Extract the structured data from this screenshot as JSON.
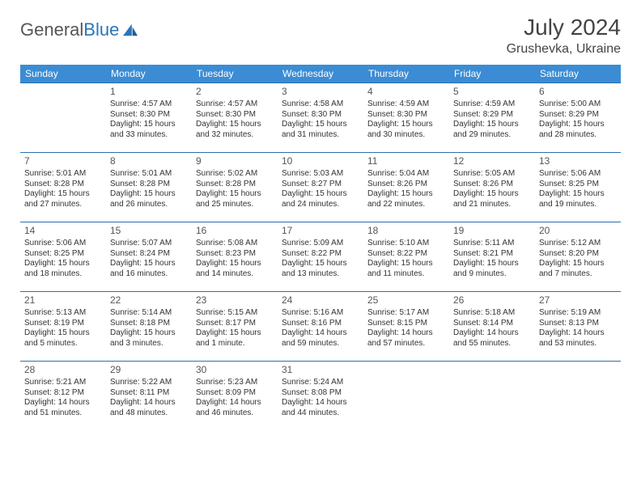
{
  "brand": {
    "part1": "General",
    "part2": "Blue"
  },
  "title": "July 2024",
  "location": "Grushevka, Ukraine",
  "colors": {
    "header_bg": "#3b8cd4",
    "header_text": "#ffffff",
    "row_border": "#2a6fb0",
    "brand_gray": "#555555",
    "brand_blue": "#2a75bb"
  },
  "weekdays": [
    "Sunday",
    "Monday",
    "Tuesday",
    "Wednesday",
    "Thursday",
    "Friday",
    "Saturday"
  ],
  "weeks": [
    [
      null,
      {
        "n": "1",
        "sr": "Sunrise: 4:57 AM",
        "ss": "Sunset: 8:30 PM",
        "d1": "Daylight: 15 hours",
        "d2": "and 33 minutes."
      },
      {
        "n": "2",
        "sr": "Sunrise: 4:57 AM",
        "ss": "Sunset: 8:30 PM",
        "d1": "Daylight: 15 hours",
        "d2": "and 32 minutes."
      },
      {
        "n": "3",
        "sr": "Sunrise: 4:58 AM",
        "ss": "Sunset: 8:30 PM",
        "d1": "Daylight: 15 hours",
        "d2": "and 31 minutes."
      },
      {
        "n": "4",
        "sr": "Sunrise: 4:59 AM",
        "ss": "Sunset: 8:30 PM",
        "d1": "Daylight: 15 hours",
        "d2": "and 30 minutes."
      },
      {
        "n": "5",
        "sr": "Sunrise: 4:59 AM",
        "ss": "Sunset: 8:29 PM",
        "d1": "Daylight: 15 hours",
        "d2": "and 29 minutes."
      },
      {
        "n": "6",
        "sr": "Sunrise: 5:00 AM",
        "ss": "Sunset: 8:29 PM",
        "d1": "Daylight: 15 hours",
        "d2": "and 28 minutes."
      }
    ],
    [
      {
        "n": "7",
        "sr": "Sunrise: 5:01 AM",
        "ss": "Sunset: 8:28 PM",
        "d1": "Daylight: 15 hours",
        "d2": "and 27 minutes."
      },
      {
        "n": "8",
        "sr": "Sunrise: 5:01 AM",
        "ss": "Sunset: 8:28 PM",
        "d1": "Daylight: 15 hours",
        "d2": "and 26 minutes."
      },
      {
        "n": "9",
        "sr": "Sunrise: 5:02 AM",
        "ss": "Sunset: 8:28 PM",
        "d1": "Daylight: 15 hours",
        "d2": "and 25 minutes."
      },
      {
        "n": "10",
        "sr": "Sunrise: 5:03 AM",
        "ss": "Sunset: 8:27 PM",
        "d1": "Daylight: 15 hours",
        "d2": "and 24 minutes."
      },
      {
        "n": "11",
        "sr": "Sunrise: 5:04 AM",
        "ss": "Sunset: 8:26 PM",
        "d1": "Daylight: 15 hours",
        "d2": "and 22 minutes."
      },
      {
        "n": "12",
        "sr": "Sunrise: 5:05 AM",
        "ss": "Sunset: 8:26 PM",
        "d1": "Daylight: 15 hours",
        "d2": "and 21 minutes."
      },
      {
        "n": "13",
        "sr": "Sunrise: 5:06 AM",
        "ss": "Sunset: 8:25 PM",
        "d1": "Daylight: 15 hours",
        "d2": "and 19 minutes."
      }
    ],
    [
      {
        "n": "14",
        "sr": "Sunrise: 5:06 AM",
        "ss": "Sunset: 8:25 PM",
        "d1": "Daylight: 15 hours",
        "d2": "and 18 minutes."
      },
      {
        "n": "15",
        "sr": "Sunrise: 5:07 AM",
        "ss": "Sunset: 8:24 PM",
        "d1": "Daylight: 15 hours",
        "d2": "and 16 minutes."
      },
      {
        "n": "16",
        "sr": "Sunrise: 5:08 AM",
        "ss": "Sunset: 8:23 PM",
        "d1": "Daylight: 15 hours",
        "d2": "and 14 minutes."
      },
      {
        "n": "17",
        "sr": "Sunrise: 5:09 AM",
        "ss": "Sunset: 8:22 PM",
        "d1": "Daylight: 15 hours",
        "d2": "and 13 minutes."
      },
      {
        "n": "18",
        "sr": "Sunrise: 5:10 AM",
        "ss": "Sunset: 8:22 PM",
        "d1": "Daylight: 15 hours",
        "d2": "and 11 minutes."
      },
      {
        "n": "19",
        "sr": "Sunrise: 5:11 AM",
        "ss": "Sunset: 8:21 PM",
        "d1": "Daylight: 15 hours",
        "d2": "and 9 minutes."
      },
      {
        "n": "20",
        "sr": "Sunrise: 5:12 AM",
        "ss": "Sunset: 8:20 PM",
        "d1": "Daylight: 15 hours",
        "d2": "and 7 minutes."
      }
    ],
    [
      {
        "n": "21",
        "sr": "Sunrise: 5:13 AM",
        "ss": "Sunset: 8:19 PM",
        "d1": "Daylight: 15 hours",
        "d2": "and 5 minutes."
      },
      {
        "n": "22",
        "sr": "Sunrise: 5:14 AM",
        "ss": "Sunset: 8:18 PM",
        "d1": "Daylight: 15 hours",
        "d2": "and 3 minutes."
      },
      {
        "n": "23",
        "sr": "Sunrise: 5:15 AM",
        "ss": "Sunset: 8:17 PM",
        "d1": "Daylight: 15 hours",
        "d2": "and 1 minute."
      },
      {
        "n": "24",
        "sr": "Sunrise: 5:16 AM",
        "ss": "Sunset: 8:16 PM",
        "d1": "Daylight: 14 hours",
        "d2": "and 59 minutes."
      },
      {
        "n": "25",
        "sr": "Sunrise: 5:17 AM",
        "ss": "Sunset: 8:15 PM",
        "d1": "Daylight: 14 hours",
        "d2": "and 57 minutes."
      },
      {
        "n": "26",
        "sr": "Sunrise: 5:18 AM",
        "ss": "Sunset: 8:14 PM",
        "d1": "Daylight: 14 hours",
        "d2": "and 55 minutes."
      },
      {
        "n": "27",
        "sr": "Sunrise: 5:19 AM",
        "ss": "Sunset: 8:13 PM",
        "d1": "Daylight: 14 hours",
        "d2": "and 53 minutes."
      }
    ],
    [
      {
        "n": "28",
        "sr": "Sunrise: 5:21 AM",
        "ss": "Sunset: 8:12 PM",
        "d1": "Daylight: 14 hours",
        "d2": "and 51 minutes."
      },
      {
        "n": "29",
        "sr": "Sunrise: 5:22 AM",
        "ss": "Sunset: 8:11 PM",
        "d1": "Daylight: 14 hours",
        "d2": "and 48 minutes."
      },
      {
        "n": "30",
        "sr": "Sunrise: 5:23 AM",
        "ss": "Sunset: 8:09 PM",
        "d1": "Daylight: 14 hours",
        "d2": "and 46 minutes."
      },
      {
        "n": "31",
        "sr": "Sunrise: 5:24 AM",
        "ss": "Sunset: 8:08 PM",
        "d1": "Daylight: 14 hours",
        "d2": "and 44 minutes."
      },
      null,
      null,
      null
    ]
  ]
}
